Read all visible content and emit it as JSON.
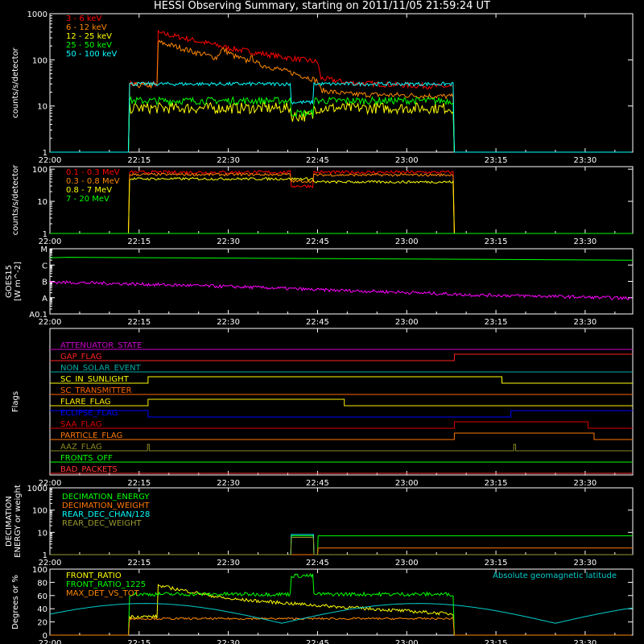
{
  "title": "HESSI Observing Summary, starting on 2011/11/05 21:59:24 UT",
  "time_ticks": [
    "22:00",
    "22:15",
    "22:30",
    "22:45",
    "23:00",
    "23:15",
    "23:30"
  ],
  "time_tick_minutes": [
    0,
    15,
    30,
    45,
    60,
    75,
    90
  ],
  "time_range_minutes": [
    0,
    98
  ],
  "chart_data": [
    {
      "type": "line",
      "id": "lightcurve_low",
      "ylabel": "counts/s/detector",
      "yscale": "log",
      "ylim": [
        1,
        1000
      ],
      "ytick_values": [
        1,
        10,
        100,
        1000
      ],
      "ytick_labels": [
        "1",
        "10",
        "100",
        "1000"
      ],
      "series": [
        {
          "name": "3 - 6 keV",
          "color": "#ff0000",
          "noise": 0.06,
          "x": [
            0,
            13.2,
            13.3,
            18,
            18.2,
            25,
            30,
            35,
            40,
            45,
            45.5,
            50,
            55,
            60,
            67.8,
            68,
            98
          ],
          "y": [
            1,
            1,
            30,
            30,
            380,
            250,
            180,
            140,
            110,
            90,
            40,
            32,
            30,
            28,
            26,
            1,
            1
          ]
        },
        {
          "name": "6 - 12 keV",
          "color": "#ff8800",
          "noise": 0.06,
          "x": [
            0,
            13.2,
            13.3,
            18,
            18.2,
            24,
            28,
            29,
            31,
            33,
            34,
            35,
            40,
            45,
            45.5,
            50,
            60,
            67.8,
            68,
            98
          ],
          "y": [
            1,
            1,
            28,
            28,
            240,
            150,
            110,
            170,
            120,
            95,
            110,
            80,
            55,
            35,
            22,
            18,
            17,
            16,
            1,
            1
          ]
        },
        {
          "name": "12 - 25 keV",
          "color": "#ffff00",
          "noise": 0.12,
          "x": [
            0,
            13.2,
            13.3,
            40.5,
            40.6,
            44.3,
            44.4,
            67.8,
            68,
            98
          ],
          "y": [
            1,
            1,
            9,
            9,
            6,
            6,
            9,
            9,
            1,
            1
          ]
        },
        {
          "name": "25 - 50 keV",
          "color": "#00ff00",
          "noise": 0.08,
          "x": [
            0,
            13.2,
            13.3,
            40.5,
            40.6,
            44.3,
            44.4,
            67.8,
            68,
            98
          ],
          "y": [
            1,
            1,
            13,
            13,
            7,
            7,
            13,
            13,
            1,
            1
          ]
        },
        {
          "name": "50 - 100 keV",
          "color": "#00ffff",
          "noise": 0.04,
          "x": [
            0,
            13.2,
            13.3,
            40.5,
            40.6,
            44.3,
            44.4,
            67.8,
            68,
            98
          ],
          "y": [
            1,
            1,
            30,
            30,
            12,
            12,
            30,
            30,
            1,
            1
          ]
        }
      ]
    },
    {
      "type": "line",
      "id": "lightcurve_high",
      "ylabel": "counts/s/detector",
      "yscale": "log",
      "ylim": [
        1,
        120
      ],
      "ytick_values": [
        1,
        10,
        100
      ],
      "ytick_labels": [
        "1",
        "10",
        "100"
      ],
      "series": [
        {
          "name": "0.1 - 0.3 MeV",
          "color": "#ff0000",
          "noise": 0.05,
          "x": [
            0,
            13.2,
            13.3,
            40.5,
            40.6,
            44.3,
            44.4,
            67.8,
            68,
            98
          ],
          "y": [
            1,
            1,
            80,
            80,
            30,
            30,
            80,
            80,
            1,
            1
          ]
        },
        {
          "name": "0.3 - 0.8 MeV",
          "color": "#ff8800",
          "noise": 0.04,
          "x": [
            0,
            13.2,
            13.3,
            40.5,
            40.6,
            44.3,
            44.4,
            67.8,
            68,
            98
          ],
          "y": [
            1,
            1,
            68,
            68,
            42,
            42,
            66,
            66,
            1,
            1
          ]
        },
        {
          "name": "0.8 - 7 MeV",
          "color": "#ffff00",
          "noise": 0.04,
          "x": [
            0,
            13.2,
            13.3,
            40.5,
            40.6,
            44.3,
            44.4,
            67.8,
            68,
            98
          ],
          "y": [
            1,
            1,
            50,
            50,
            50,
            50,
            40,
            40,
            1,
            1
          ]
        },
        {
          "name": "7 - 20 MeV",
          "color": "#00ff00",
          "noise": 0,
          "x": [
            0,
            98
          ],
          "y": [
            1,
            1
          ]
        }
      ]
    },
    {
      "type": "line",
      "id": "goes",
      "ylabel": "GOES15",
      "ylabel2": "[W m^-2]",
      "yscale": "log",
      "ylim": [
        1e-08,
        0.0001
      ],
      "ytick_values": [
        1e-08,
        1e-07,
        1e-06,
        1e-05,
        0.0001
      ],
      "ytick_labels": [
        "A0.1",
        "A",
        "B",
        "C",
        "M"
      ],
      "series": [
        {
          "name": "GOES 1-8 A",
          "color": "#00ff00",
          "noise": 0,
          "x": [
            0,
            3,
            98
          ],
          "y": [
            2.8e-05,
            3e-05,
            2e-05
          ]
        },
        {
          "name": "GOES 0.5-4 A",
          "color": "#ff00ff",
          "noise": 0.1,
          "x": [
            0,
            20,
            45,
            70,
            98
          ],
          "y": [
            9e-07,
            6e-07,
            3e-07,
            1.5e-07,
            9e-08
          ]
        }
      ]
    },
    {
      "type": "line",
      "id": "flags",
      "ylabel": "Flags",
      "series": [
        {
          "name": "ATTENUATOR_STATE",
          "color": "#cc00cc",
          "low": 0,
          "high": 0,
          "transitions": []
        },
        {
          "name": "GAP_FLAG",
          "color": "#ff2222",
          "low": 0,
          "high": 1,
          "transitions": [
            [
              0,
              0
            ],
            [
              68,
              1
            ]
          ]
        },
        {
          "name": "NON_SOLAR_EVENT",
          "color": "#00aaaa",
          "low": 0,
          "high": 0,
          "transitions": []
        },
        {
          "name": "SC_IN_SUNLIGHT",
          "color": "#ffff00",
          "low": 0,
          "high": 1,
          "transitions": [
            [
              0,
              0
            ],
            [
              16.5,
              1
            ],
            [
              76,
              0
            ]
          ]
        },
        {
          "name": "SC_TRANSMITTER",
          "color": "#ff6600",
          "low": 0,
          "high": 0,
          "transitions": []
        },
        {
          "name": "FLARE_FLAG",
          "color": "#ffee00",
          "low": 0,
          "high": 1,
          "transitions": [
            [
              0,
              0
            ],
            [
              16.5,
              1
            ],
            [
              49.5,
              0
            ]
          ]
        },
        {
          "name": "ECLIPSE_FLAG",
          "color": "#0000ff",
          "low": 0,
          "high": 1,
          "transitions": [
            [
              0,
              1
            ],
            [
              16.5,
              0
            ],
            [
              77.5,
              1
            ]
          ]
        },
        {
          "name": "SAA_FLAG",
          "color": "#dd0000",
          "low": 0,
          "high": 1,
          "transitions": [
            [
              0,
              0
            ],
            [
              68,
              1
            ],
            [
              90.5,
              0
            ]
          ]
        },
        {
          "name": "PARTICLE_FLAG",
          "color": "#ff7700",
          "low": 0,
          "high": 1,
          "transitions": [
            [
              0,
              0
            ],
            [
              68,
              1
            ],
            [
              91.5,
              0
            ]
          ]
        },
        {
          "name": "AAZ_FLAG",
          "color": "#888822",
          "low": 0,
          "high": 1,
          "transitions": [
            [
              0,
              0
            ],
            [
              16.4,
              1
            ],
            [
              16.7,
              0
            ],
            [
              78,
              1
            ],
            [
              78.3,
              0
            ]
          ]
        },
        {
          "name": "FRONTS_OFF",
          "color": "#00ff00",
          "low": 0,
          "high": 0,
          "transitions": []
        },
        {
          "name": "BAD_PACKETS",
          "color": "#ff3333",
          "low": 0,
          "high": 0,
          "transitions": []
        }
      ]
    },
    {
      "type": "line",
      "id": "decimation",
      "ylabel": "DECIMATION",
      "ylabel2": "ENERGY or weight",
      "yscale": "log",
      "ylim": [
        1,
        1000
      ],
      "ytick_values": [
        1,
        10,
        100,
        1000
      ],
      "ytick_labels": [
        "1",
        "10",
        "100",
        "1000"
      ],
      "series": [
        {
          "name": "DECIMATION_ENERGY",
          "color": "#00ff00",
          "noise": 0,
          "x": [
            0,
            40.5,
            40.6,
            44.3,
            44.4,
            45,
            45.1,
            98
          ],
          "y": [
            1,
            1,
            7,
            7,
            1,
            1,
            7,
            7
          ]
        },
        {
          "name": "DECIMATION_WEIGHT",
          "color": "#ff7700",
          "noise": 0,
          "x": [
            0,
            40.5,
            40.6,
            44.3,
            44.4,
            45,
            45.1,
            98
          ],
          "y": [
            1,
            1,
            1,
            1,
            1,
            1,
            2,
            2
          ]
        },
        {
          "name": "REAR_DEC_CHAN/128",
          "color": "#00ffff",
          "noise": 0,
          "x": [
            0,
            40.5,
            40.6,
            44.3,
            44.4,
            98
          ],
          "y": [
            1,
            1,
            8,
            8,
            1,
            1
          ]
        },
        {
          "name": "REAR_DEC_WEIGHT",
          "color": "#999933",
          "noise": 0,
          "x": [
            0,
            40.5,
            40.6,
            44.3,
            44.4,
            98
          ],
          "y": [
            1,
            1,
            6,
            6,
            1,
            1
          ]
        }
      ]
    },
    {
      "type": "line",
      "id": "ratios",
      "ylabel": "Degrees or %",
      "yscale": "linear",
      "ylim": [
        0,
        100
      ],
      "ytick_values": [
        0,
        20,
        40,
        60,
        80,
        100
      ],
      "ytick_labels": [
        "0",
        "20",
        "40",
        "60",
        "80",
        "100"
      ],
      "annotation": "Absolute geomagnetic latitude",
      "series": [
        {
          "name": "FRONT_RATIO",
          "color": "#ffff00",
          "noise": 2.5,
          "x": [
            0,
            13.2,
            13.3,
            18,
            18.2,
            30,
            45,
            67.8,
            68,
            98
          ],
          "y": [
            0,
            0,
            28,
            28,
            75,
            55,
            45,
            32,
            0,
            0
          ]
        },
        {
          "name": "FRONT_RATIO_1225",
          "color": "#00ff00",
          "noise": 3,
          "x": [
            0,
            13.2,
            13.3,
            40.5,
            40.6,
            44.3,
            44.4,
            67.8,
            68,
            98
          ],
          "y": [
            0,
            0,
            62,
            62,
            90,
            90,
            62,
            62,
            0,
            0
          ]
        },
        {
          "name": "MAX_DET_VS_TOT",
          "color": "#ff8800",
          "noise": 1.5,
          "x": [
            0,
            13.2,
            13.3,
            67.8,
            68,
            98
          ],
          "y": [
            0,
            0,
            25,
            25,
            0,
            0
          ]
        },
        {
          "name": "Absolute geomagnetic latitude",
          "color": "#00cccc",
          "noise": 0,
          "kind": "latitude",
          "period": 46,
          "offset": 18,
          "amp": 30
        }
      ]
    }
  ]
}
